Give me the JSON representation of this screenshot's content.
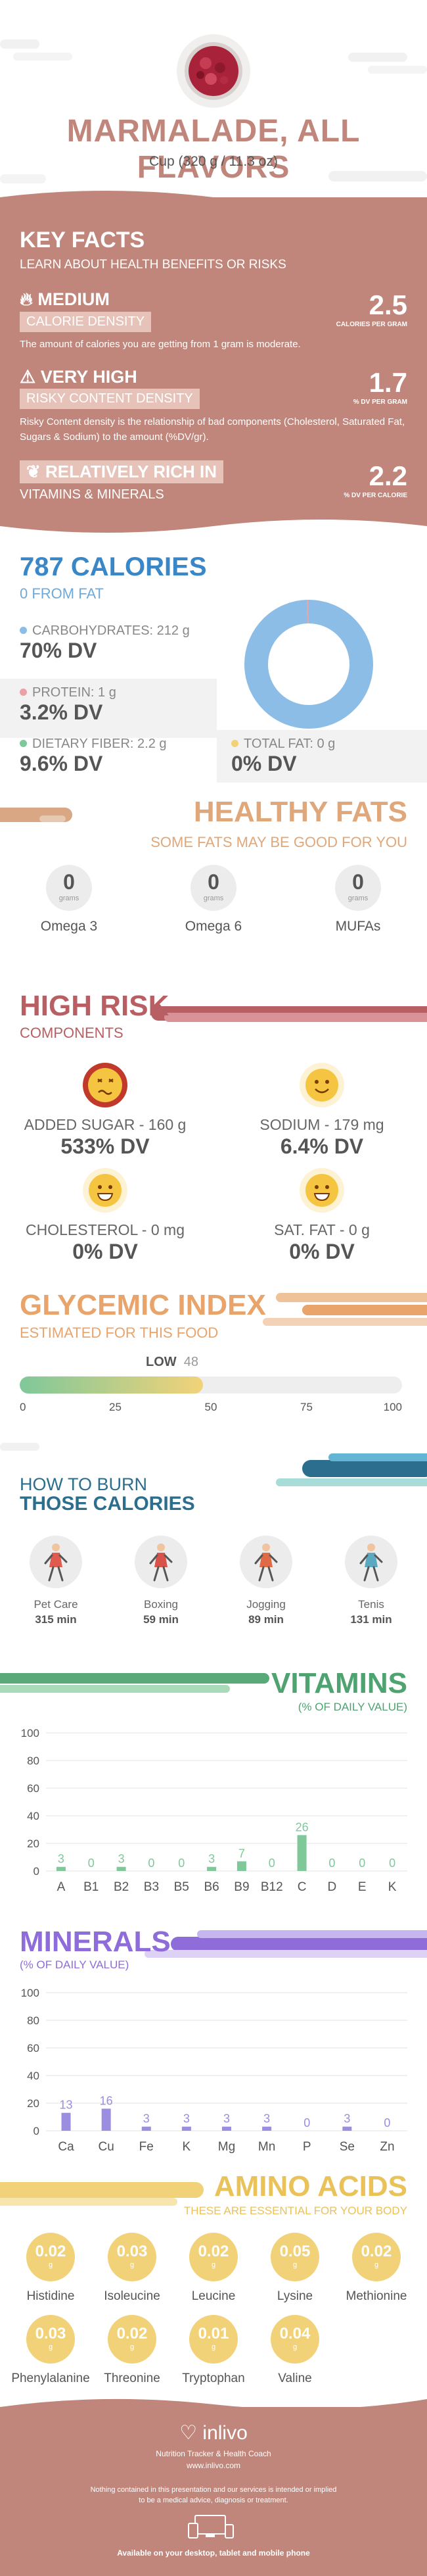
{
  "header": {
    "title": "MARMALADE, ALL FLAVORS",
    "serving": "Cup (320 g / 11.3 oz)"
  },
  "key_facts": {
    "title": "KEY FACTS",
    "subtitle": "LEARN ABOUT HEALTH BENEFITS OR RISKS",
    "items": [
      {
        "level": "MEDIUM",
        "name": "CALORIE DENSITY",
        "value": "2.5",
        "unit": "CALORIES PER GRAM",
        "text": "The amount of calories you are getting from 1 gram is moderate."
      },
      {
        "level": "VERY HIGH",
        "name": "RISKY CONTENT DENSITY",
        "value": "1.7",
        "unit": "% DV PER GRAM",
        "text": "Risky Content density is the relationship of bad components (Cholesterol, Saturated Fat, Sugars & Sodium) to the amount (%DV/gr)."
      },
      {
        "level": "RELATIVELY RICH IN",
        "name": "VITAMINS & MINERALS",
        "value": "2.2",
        "unit": "% DV PER CALORIE",
        "text": ""
      }
    ]
  },
  "calories": {
    "title": "787 CALORIES",
    "from_fat": "0 FROM FAT",
    "carbs_label": "CARBOHYDRATES: 212 g",
    "carbs_dv": "70% DV",
    "protein_label": "PROTEIN: 1 g",
    "protein_dv": "3.2% DV",
    "fiber_label": "DIETARY FIBER: 2.2 g",
    "fiber_dv": "9.6% DV",
    "fat_label": "TOTAL FAT: 0 g",
    "fat_dv": "0% DV",
    "donut": {
      "carbs_pct": 99.5,
      "protein_pct": 0.5,
      "fat_pct": 0,
      "colors": {
        "carbs": "#8cbde6",
        "protein": "#e9a1a6",
        "fat": "#f2d279"
      }
    }
  },
  "healthy_fats": {
    "title": "HEALTHY FATS",
    "subtitle": "SOME FATS MAY BE GOOD FOR YOU",
    "items": [
      {
        "value": "0",
        "unit": "grams",
        "label": "Omega 3"
      },
      {
        "value": "0",
        "unit": "grams",
        "label": "Omega 6"
      },
      {
        "value": "0",
        "unit": "grams",
        "label": "MUFAs"
      }
    ]
  },
  "high_risk": {
    "title": "HIGH RISK",
    "subtitle": "COMPONENTS",
    "items": [
      {
        "label": "ADDED SUGAR - 160 g",
        "dv": "533% DV",
        "face": "sick"
      },
      {
        "label": "SODIUM - 179 mg",
        "dv": "6.4% DV",
        "face": "happy"
      },
      {
        "label": "CHOLESTEROL - 0 mg",
        "dv": "0% DV",
        "face": "grin"
      },
      {
        "label": "SAT. FAT - 0 g",
        "dv": "0% DV",
        "face": "grin"
      }
    ]
  },
  "glycemic": {
    "title": "GLYCEMIC INDEX",
    "subtitle": "ESTIMATED FOR THIS FOOD",
    "level": "LOW",
    "value": "48",
    "ticks": [
      "0",
      "25",
      "50",
      "75",
      "100"
    ],
    "fill_fraction": 0.48
  },
  "burn": {
    "title1": "HOW TO BURN",
    "title2": "THOSE CALORIES",
    "items": [
      {
        "label": "Pet Care",
        "time": "315 min"
      },
      {
        "label": "Boxing",
        "time": "59 min"
      },
      {
        "label": "Jogging",
        "time": "89 min"
      },
      {
        "label": "Tenis",
        "time": "131 min"
      }
    ]
  },
  "vitamins": {
    "title": "VITAMINS",
    "subtitle": "(% OF DAILY VALUE)"
  },
  "minerals": {
    "title": "MINERALS",
    "subtitle": "(% OF DAILY VALUE)"
  },
  "chart_data": [
    {
      "type": "bar",
      "title": "VITAMINS",
      "ylabel": "(% OF DAILY VALUE)",
      "categories": [
        "A",
        "B1",
        "B2",
        "B3",
        "B5",
        "B6",
        "B9",
        "B12",
        "C",
        "D",
        "E",
        "K"
      ],
      "values": [
        3,
        0,
        3,
        0,
        0,
        3,
        7,
        0,
        26,
        0,
        0,
        0
      ],
      "ylim": [
        0,
        100
      ],
      "yticks": [
        "0",
        "20",
        "40",
        "60",
        "80",
        "100"
      ],
      "color": "#7fc89a"
    },
    {
      "type": "bar",
      "title": "MINERALS",
      "ylabel": "(% OF DAILY VALUE)",
      "categories": [
        "Ca",
        "Cu",
        "Fe",
        "K",
        "Mg",
        "Mn",
        "P",
        "Se",
        "Zn"
      ],
      "values": [
        13,
        16,
        3,
        3,
        3,
        3,
        0,
        3,
        0
      ],
      "ylim": [
        0,
        100
      ],
      "yticks": [
        "0",
        "20",
        "40",
        "60",
        "80",
        "100"
      ],
      "color": "#9b8ee0"
    }
  ],
  "amino": {
    "title": "AMINO ACIDS",
    "subtitle": "THESE ARE ESSENTIAL FOR YOUR BODY",
    "items": [
      {
        "value": "0.02",
        "unit": "g",
        "label": "Histidine"
      },
      {
        "value": "0.03",
        "unit": "g",
        "label": "Isoleucine"
      },
      {
        "value": "0.02",
        "unit": "g",
        "label": "Leucine"
      },
      {
        "value": "0.05",
        "unit": "g",
        "label": "Lysine"
      },
      {
        "value": "0.02",
        "unit": "g",
        "label": "Methionine"
      },
      {
        "value": "0.03",
        "unit": "g",
        "label": "Phenylalanine"
      },
      {
        "value": "0.02",
        "unit": "g",
        "label": "Threonine"
      },
      {
        "value": "0.01",
        "unit": "g",
        "label": "Tryptophan"
      },
      {
        "value": "0.04",
        "unit": "g",
        "label": "Valine"
      }
    ]
  },
  "footer": {
    "brand": "inlivo",
    "tagline": "Nutrition Tracker & Health Coach",
    "url": "www.inlivo.com",
    "disclaimer1": "Nothing contained in this presentation and our services is intended or implied",
    "disclaimer2": "to be a medical advice, diagnosis or treatment.",
    "available": "Available on your desktop, tablet and mobile phone"
  }
}
